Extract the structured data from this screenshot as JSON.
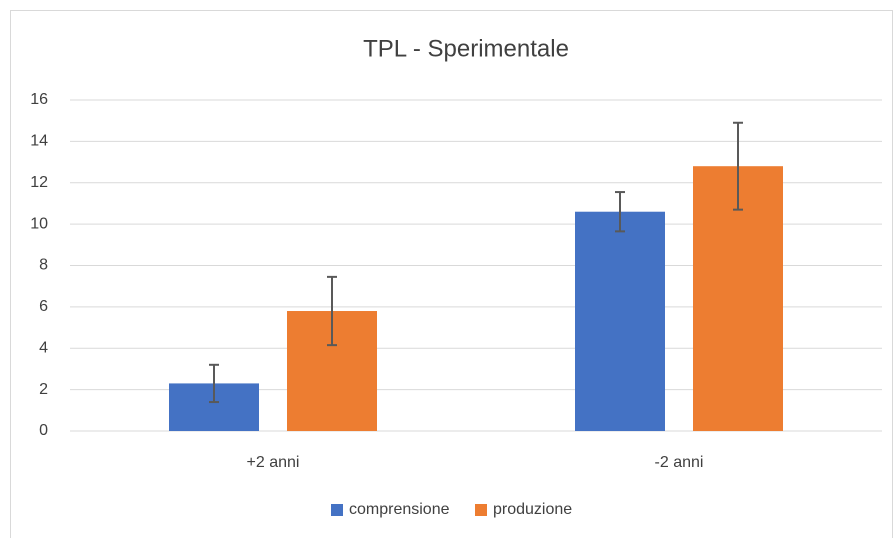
{
  "chart_data": {
    "type": "bar",
    "title": "TPL - Sperimentale",
    "categories": [
      "+2 anni",
      "-2 anni"
    ],
    "series": [
      {
        "name": "comprensione",
        "color": "#4472c4",
        "values": [
          2.3,
          10.6
        ],
        "errors": [
          0.9,
          0.95
        ]
      },
      {
        "name": "produzione",
        "color": "#ed7d31",
        "values": [
          5.8,
          12.8
        ],
        "errors": [
          1.65,
          2.1
        ]
      }
    ],
    "ylim": [
      0,
      16
    ],
    "yticks": [
      0,
      2,
      4,
      6,
      8,
      10,
      12,
      14,
      16
    ],
    "grid": true,
    "legend": "bottom"
  }
}
